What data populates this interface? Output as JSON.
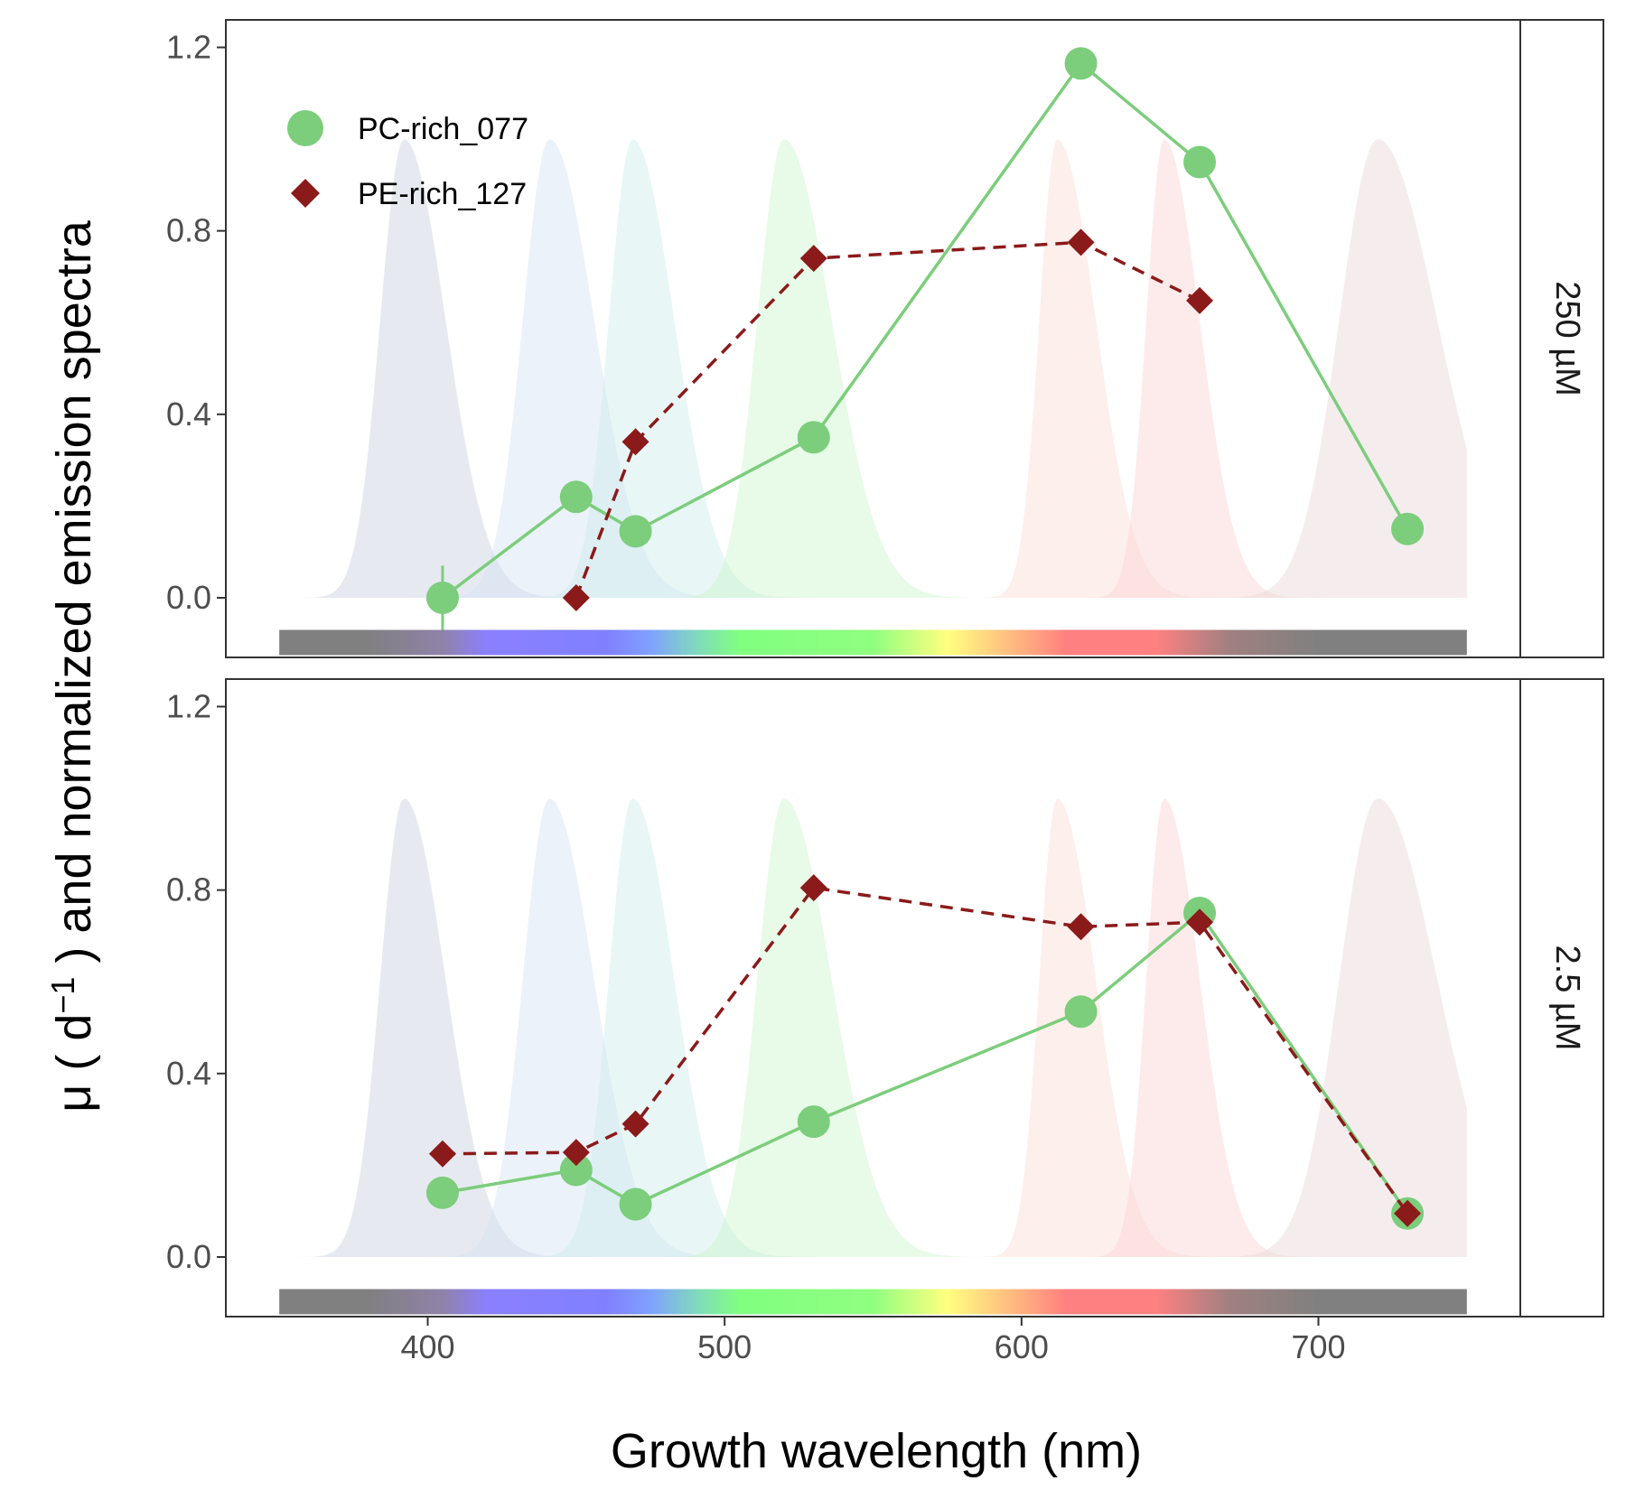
{
  "chart_data": {
    "type": "line",
    "xlabel": "Growth wavelength (nm)",
    "ylabel": {
      "prefix": "μ  ( d",
      "superscript": "−1",
      "suffix": " ) and normalized emission spectra"
    },
    "xlim": [
      332,
      768
    ],
    "ylim": [
      -0.13,
      1.26
    ],
    "x_ticks": [
      400,
      500,
      600,
      700
    ],
    "y_ticks": [
      0.0,
      0.4,
      0.8,
      1.2
    ],
    "y_tick_labels": [
      "0.0",
      "0.4",
      "0.8",
      "1.2"
    ],
    "grid": false,
    "legend_position": "top-left",
    "legend": [
      {
        "label": "PC-rich_077",
        "color": "#7ccd7c",
        "marker": "circle",
        "line": "solid"
      },
      {
        "label": "PE-rich_127",
        "color": "#8b1a1a",
        "marker": "diamond",
        "line": "dashed"
      }
    ],
    "emission_spectra": [
      {
        "peak": 392,
        "color": "#c9cfe1"
      },
      {
        "peak": 441,
        "color": "#d3e2f2"
      },
      {
        "peak": 469,
        "color": "#cdeaea"
      },
      {
        "peak": 520,
        "color": "#ccf3cc"
      },
      {
        "peak": 612,
        "color": "#fbdcd3"
      },
      {
        "peak": 648,
        "color": "#fbd2d2"
      },
      {
        "peak": 720,
        "color": "#e9d7d7"
      }
    ],
    "panels": [
      {
        "strip_label": "250 µM",
        "series": [
          {
            "name": "PC-rich_077",
            "x": [
              405,
              450,
              470,
              530,
              620,
              660,
              730
            ],
            "y": [
              0.0,
              0.22,
              0.145,
              0.35,
              1.165,
              0.95,
              0.15
            ],
            "error": [
              0.07,
              0,
              0,
              0,
              0,
              0,
              0
            ]
          },
          {
            "name": "PE-rich_127",
            "x": [
              450,
              470,
              530,
              620,
              660
            ],
            "y": [
              0.0,
              0.34,
              0.74,
              0.775,
              0.648
            ]
          }
        ]
      },
      {
        "strip_label": "2.5 µM",
        "series": [
          {
            "name": "PC-rich_077",
            "x": [
              405,
              450,
              470,
              530,
              620,
              660,
              730
            ],
            "y": [
              0.14,
              0.19,
              0.115,
              0.295,
              0.535,
              0.75,
              0.095
            ]
          },
          {
            "name": "PE-rich_127",
            "x": [
              405,
              450,
              470,
              530,
              620,
              660,
              730
            ],
            "y": [
              0.225,
              0.228,
              0.29,
              0.805,
              0.72,
              0.73,
              0.095
            ]
          }
        ]
      }
    ]
  }
}
